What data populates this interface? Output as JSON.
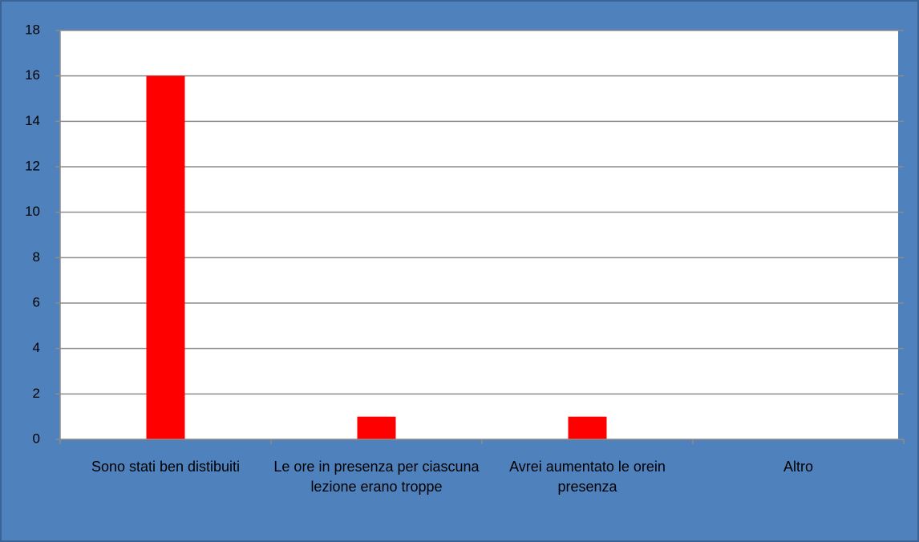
{
  "chart_data": {
    "type": "bar",
    "categories": [
      "Sono stati ben distibuiti",
      "Le ore in presenza per ciascuna lezione erano troppe",
      "Avrei aumentato le orein presenza",
      "Altro"
    ],
    "values": [
      16,
      1,
      1,
      0
    ],
    "color": "#ff0000",
    "ylim": [
      0,
      18
    ],
    "yticks": [
      0,
      2,
      4,
      6,
      8,
      10,
      12,
      14,
      16,
      18
    ],
    "grid": true
  }
}
